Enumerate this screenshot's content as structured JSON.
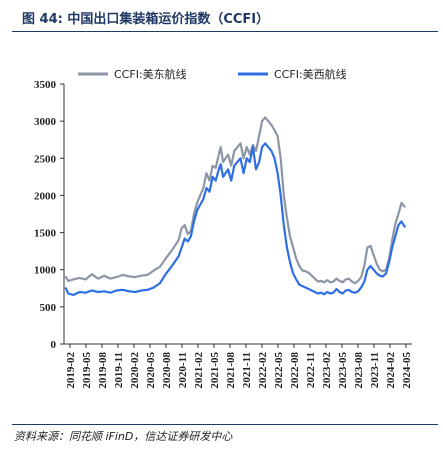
{
  "figure": {
    "title": "图 44:  中国出口集装箱运价指数（CCFI）",
    "source": "资料来源：同花顺 iFinD，信达证券研发中心"
  },
  "chart_data": {
    "type": "line",
    "title": "图 44:  中国出口集装箱运价指数（CCFI）",
    "xlabel": "",
    "ylabel": "",
    "ylim": [
      0,
      3500
    ],
    "yticks": [
      0,
      500,
      1000,
      1500,
      2000,
      2500,
      3000,
      3500
    ],
    "xlim": [
      2019.05,
      2024.67
    ],
    "xtick_labels": [
      "2019-02",
      "2019-05",
      "2019-08",
      "2019-11",
      "2020-02",
      "2020-05",
      "2020-08",
      "2020-11",
      "2021-02",
      "2021-05",
      "2021-08",
      "2021-11",
      "2022-02",
      "2022-05",
      "2022-08",
      "2022-11",
      "2023-02",
      "2023-05",
      "2023-08",
      "2023-11",
      "2024-02",
      "2024-05"
    ],
    "legend_position": "top",
    "grid": false,
    "series": [
      {
        "name": "CCFI:美东航线",
        "color": "#8c96a6",
        "points": [
          [
            2019.08,
            900
          ],
          [
            2019.12,
            850
          ],
          [
            2019.2,
            870
          ],
          [
            2019.3,
            890
          ],
          [
            2019.4,
            870
          ],
          [
            2019.5,
            940
          ],
          [
            2019.6,
            880
          ],
          [
            2019.7,
            920
          ],
          [
            2019.8,
            880
          ],
          [
            2019.9,
            900
          ],
          [
            2020.0,
            930
          ],
          [
            2020.1,
            910
          ],
          [
            2020.2,
            900
          ],
          [
            2020.3,
            920
          ],
          [
            2020.4,
            930
          ],
          [
            2020.5,
            990
          ],
          [
            2020.6,
            1040
          ],
          [
            2020.7,
            1160
          ],
          [
            2020.8,
            1270
          ],
          [
            2020.9,
            1400
          ],
          [
            2020.95,
            1560
          ],
          [
            2021.0,
            1600
          ],
          [
            2021.05,
            1480
          ],
          [
            2021.1,
            1520
          ],
          [
            2021.15,
            1750
          ],
          [
            2021.2,
            1900
          ],
          [
            2021.3,
            2100
          ],
          [
            2021.35,
            2300
          ],
          [
            2021.4,
            2200
          ],
          [
            2021.45,
            2400
          ],
          [
            2021.5,
            2370
          ],
          [
            2021.55,
            2550
          ],
          [
            2021.58,
            2650
          ],
          [
            2021.62,
            2450
          ],
          [
            2021.7,
            2550
          ],
          [
            2021.75,
            2400
          ],
          [
            2021.8,
            2600
          ],
          [
            2021.9,
            2700
          ],
          [
            2021.95,
            2500
          ],
          [
            2022.0,
            2650
          ],
          [
            2022.05,
            2550
          ],
          [
            2022.1,
            2680
          ],
          [
            2022.15,
            2600
          ],
          [
            2022.2,
            2800
          ],
          [
            2022.25,
            3000
          ],
          [
            2022.3,
            3050
          ],
          [
            2022.35,
            3000
          ],
          [
            2022.4,
            2950
          ],
          [
            2022.45,
            2880
          ],
          [
            2022.5,
            2800
          ],
          [
            2022.55,
            2500
          ],
          [
            2022.6,
            2000
          ],
          [
            2022.65,
            1700
          ],
          [
            2022.7,
            1450
          ],
          [
            2022.75,
            1300
          ],
          [
            2022.8,
            1150
          ],
          [
            2022.85,
            1050
          ],
          [
            2022.9,
            990
          ],
          [
            2022.95,
            980
          ],
          [
            2023.0,
            960
          ],
          [
            2023.05,
            920
          ],
          [
            2023.1,
            880
          ],
          [
            2023.15,
            840
          ],
          [
            2023.2,
            850
          ],
          [
            2023.25,
            830
          ],
          [
            2023.3,
            860
          ],
          [
            2023.35,
            830
          ],
          [
            2023.4,
            840
          ],
          [
            2023.45,
            880
          ],
          [
            2023.5,
            850
          ],
          [
            2023.55,
            830
          ],
          [
            2023.6,
            870
          ],
          [
            2023.65,
            880
          ],
          [
            2023.7,
            840
          ],
          [
            2023.75,
            820
          ],
          [
            2023.8,
            850
          ],
          [
            2023.85,
            900
          ],
          [
            2023.9,
            1050
          ],
          [
            2023.95,
            1300
          ],
          [
            2024.0,
            1320
          ],
          [
            2024.05,
            1200
          ],
          [
            2024.1,
            1080
          ],
          [
            2024.15,
            1000
          ],
          [
            2024.2,
            980
          ],
          [
            2024.25,
            1000
          ],
          [
            2024.3,
            1150
          ],
          [
            2024.35,
            1400
          ],
          [
            2024.4,
            1620
          ],
          [
            2024.45,
            1750
          ],
          [
            2024.5,
            1900
          ],
          [
            2024.55,
            1850
          ]
        ]
      },
      {
        "name": "CCFI:美西航线",
        "color": "#2f6fe4",
        "points": [
          [
            2019.08,
            750
          ],
          [
            2019.12,
            680
          ],
          [
            2019.2,
            660
          ],
          [
            2019.3,
            700
          ],
          [
            2019.4,
            690
          ],
          [
            2019.5,
            720
          ],
          [
            2019.6,
            700
          ],
          [
            2019.7,
            710
          ],
          [
            2019.8,
            690
          ],
          [
            2019.9,
            720
          ],
          [
            2020.0,
            730
          ],
          [
            2020.1,
            710
          ],
          [
            2020.2,
            700
          ],
          [
            2020.3,
            720
          ],
          [
            2020.4,
            730
          ],
          [
            2020.5,
            760
          ],
          [
            2020.6,
            820
          ],
          [
            2020.7,
            950
          ],
          [
            2020.8,
            1060
          ],
          [
            2020.9,
            1180
          ],
          [
            2020.95,
            1300
          ],
          [
            2021.0,
            1420
          ],
          [
            2021.05,
            1380
          ],
          [
            2021.1,
            1450
          ],
          [
            2021.15,
            1650
          ],
          [
            2021.2,
            1800
          ],
          [
            2021.3,
            1950
          ],
          [
            2021.35,
            2100
          ],
          [
            2021.4,
            2050
          ],
          [
            2021.45,
            2250
          ],
          [
            2021.5,
            2200
          ],
          [
            2021.55,
            2350
          ],
          [
            2021.58,
            2420
          ],
          [
            2021.62,
            2250
          ],
          [
            2021.7,
            2350
          ],
          [
            2021.75,
            2200
          ],
          [
            2021.8,
            2400
          ],
          [
            2021.9,
            2500
          ],
          [
            2021.95,
            2300
          ],
          [
            2022.0,
            2500
          ],
          [
            2022.05,
            2450
          ],
          [
            2022.1,
            2650
          ],
          [
            2022.15,
            2350
          ],
          [
            2022.2,
            2450
          ],
          [
            2022.25,
            2650
          ],
          [
            2022.3,
            2700
          ],
          [
            2022.35,
            2650
          ],
          [
            2022.4,
            2600
          ],
          [
            2022.45,
            2500
          ],
          [
            2022.5,
            2300
          ],
          [
            2022.55,
            2000
          ],
          [
            2022.6,
            1600
          ],
          [
            2022.65,
            1300
          ],
          [
            2022.7,
            1100
          ],
          [
            2022.75,
            950
          ],
          [
            2022.8,
            870
          ],
          [
            2022.85,
            800
          ],
          [
            2022.9,
            780
          ],
          [
            2022.95,
            760
          ],
          [
            2023.0,
            740
          ],
          [
            2023.05,
            720
          ],
          [
            2023.1,
            700
          ],
          [
            2023.15,
            680
          ],
          [
            2023.2,
            690
          ],
          [
            2023.25,
            670
          ],
          [
            2023.3,
            700
          ],
          [
            2023.35,
            680
          ],
          [
            2023.4,
            690
          ],
          [
            2023.45,
            740
          ],
          [
            2023.5,
            700
          ],
          [
            2023.55,
            680
          ],
          [
            2023.6,
            720
          ],
          [
            2023.65,
            730
          ],
          [
            2023.7,
            700
          ],
          [
            2023.75,
            690
          ],
          [
            2023.8,
            710
          ],
          [
            2023.85,
            760
          ],
          [
            2023.9,
            840
          ],
          [
            2023.95,
            1000
          ],
          [
            2024.0,
            1050
          ],
          [
            2024.05,
            1000
          ],
          [
            2024.1,
            950
          ],
          [
            2024.15,
            920
          ],
          [
            2024.2,
            910
          ],
          [
            2024.25,
            950
          ],
          [
            2024.3,
            1100
          ],
          [
            2024.35,
            1300
          ],
          [
            2024.4,
            1450
          ],
          [
            2024.45,
            1600
          ],
          [
            2024.5,
            1650
          ],
          [
            2024.55,
            1580
          ]
        ]
      }
    ]
  }
}
